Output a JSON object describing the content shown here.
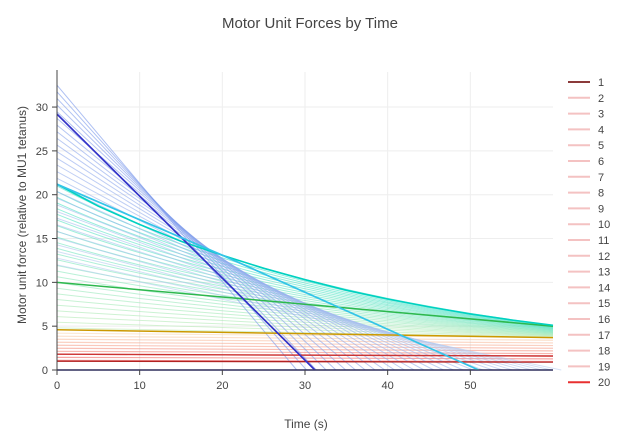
{
  "chart_data": {
    "type": "line",
    "title": "Motor Unit Forces by Time",
    "xlabel": "Time (s)",
    "ylabel": "Motor unit force (relative to MU1 tetanus)",
    "xlim": [
      0,
      60
    ],
    "ylim": [
      0,
      34
    ],
    "x_ticks": [
      0,
      10,
      20,
      30,
      40,
      50
    ],
    "y_ticks": [
      0,
      5,
      10,
      15,
      20,
      25,
      30
    ],
    "grid": true,
    "legend_position": "right",
    "legend_entries": [
      "1",
      "2",
      "3",
      "4",
      "5",
      "6",
      "7",
      "8",
      "9",
      "10",
      "11",
      "12",
      "13",
      "14",
      "15",
      "16",
      "17",
      "18",
      "19",
      "20"
    ],
    "legend_colors": [
      "#8b3a3a",
      "#f4c2c2",
      "#f4c2c2",
      "#f4c2c2",
      "#f4c2c2",
      "#f4c2c2",
      "#f4c2c2",
      "#f4c2c2",
      "#f4c2c2",
      "#f4c2c2",
      "#f4c2c2",
      "#f4c2c2",
      "#f4c2c2",
      "#f4c2c2",
      "#f4c2c2",
      "#f4c2c2",
      "#f4c2c2",
      "#f4c2c2",
      "#f4c2c2",
      "#e83030"
    ],
    "series": [
      {
        "color": "#00008b",
        "width": 1.6,
        "x": [
          0,
          60
        ],
        "y": [
          0,
          0
        ]
      },
      {
        "color": "#b22222",
        "width": 1.4,
        "x": [
          0,
          60
        ],
        "y": [
          1.0,
          0.9
        ]
      },
      {
        "color": "#cc3333",
        "width": 1.4,
        "x": [
          0,
          60
        ],
        "y": [
          1.8,
          1.6
        ]
      },
      {
        "color": "#cc9900",
        "width": 1.5,
        "x": [
          0,
          60
        ],
        "y": [
          4.6,
          3.7
        ]
      },
      {
        "color": "#2db84d",
        "width": 1.5,
        "x": [
          0,
          60
        ],
        "y": [
          10.0,
          5.0
        ]
      },
      {
        "color": "#00d1c1",
        "width": 1.6,
        "x": [
          0,
          5,
          10,
          15,
          20,
          25,
          30,
          35,
          40,
          45,
          50,
          55,
          60
        ],
        "y": [
          21.2,
          18.7,
          16.6,
          14.7,
          13.1,
          11.6,
          10.3,
          9.1,
          8.1,
          7.2,
          6.4,
          5.7,
          5.1
        ]
      },
      {
        "color": "#3232c8",
        "width": 1.7,
        "x": [
          0,
          31.2
        ],
        "y": [
          29.2,
          0
        ]
      },
      {
        "color": "#33c4e8",
        "width": 1.7,
        "x": [
          0,
          20,
          51
        ],
        "y": [
          21.2,
          13.1,
          0
        ]
      }
    ]
  }
}
